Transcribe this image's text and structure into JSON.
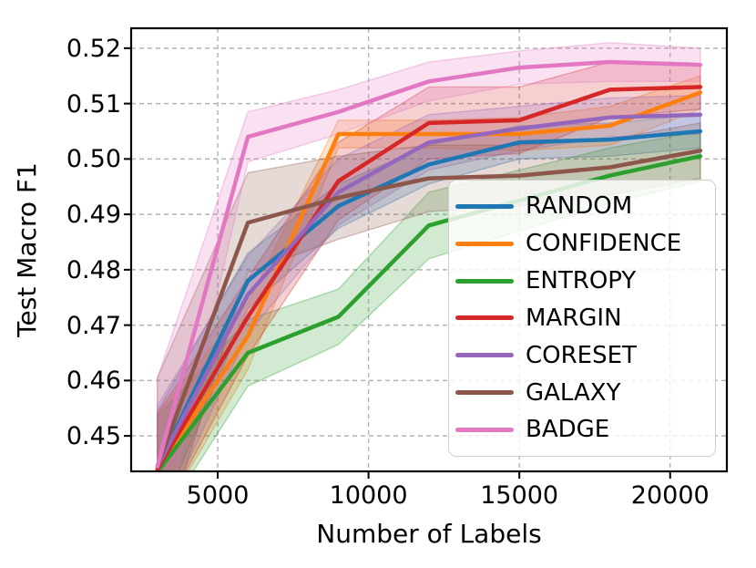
{
  "chart_data": {
    "type": "line",
    "title": "",
    "xlabel": "Number of Labels",
    "ylabel": "Test Macro F1",
    "x": [
      3000,
      6000,
      9000,
      12000,
      15000,
      18000,
      21000
    ],
    "xlim": [
      2130,
      21880
    ],
    "ylim": [
      0.4436,
      0.5236
    ],
    "x_tick_values": [
      5000,
      10000,
      15000,
      20000
    ],
    "x_tick_labels": [
      "5000",
      "10000",
      "15000",
      "20000"
    ],
    "y_tick_values": [
      0.45,
      0.46,
      0.47,
      0.48,
      0.49,
      0.5,
      0.51,
      0.52
    ],
    "y_tick_labels": [
      "0.45",
      "0.46",
      "0.47",
      "0.48",
      "0.49",
      "0.50",
      "0.51",
      "0.52"
    ],
    "grid": true,
    "grid_style": "dashed",
    "legend_position": "lower right",
    "series": [
      {
        "name": "RANDOM",
        "color": "#1f77b4",
        "values": [
          0.4445,
          0.478,
          0.4915,
          0.499,
          0.503,
          0.5035,
          0.505
        ],
        "band_halfwidth": [
          0.01,
          0.005,
          0.004,
          0.0035,
          0.003,
          0.003,
          0.003
        ]
      },
      {
        "name": "CONFIDENCE",
        "color": "#ff7f0e",
        "values": [
          0.444,
          0.468,
          0.5045,
          0.5045,
          0.5045,
          0.506,
          0.512
        ],
        "band_halfwidth": [
          0.01,
          0.006,
          0.0025,
          0.0025,
          0.003,
          0.0035,
          0.003
        ]
      },
      {
        "name": "ENTROPY",
        "color": "#2ca02c",
        "values": [
          0.4435,
          0.465,
          0.4715,
          0.488,
          0.4925,
          0.497,
          0.5005
        ],
        "band_halfwidth": [
          0.01,
          0.006,
          0.005,
          0.006,
          0.0055,
          0.005,
          0.0045
        ]
      },
      {
        "name": "MARGIN",
        "color": "#d62728",
        "values": [
          0.444,
          0.4715,
          0.496,
          0.5065,
          0.507,
          0.5125,
          0.513
        ],
        "band_halfwidth": [
          0.01,
          0.007,
          0.007,
          0.0065,
          0.006,
          0.005,
          0.004
        ]
      },
      {
        "name": "CORESET",
        "color": "#9467bd",
        "values": [
          0.4445,
          0.4755,
          0.494,
          0.503,
          0.5055,
          0.5075,
          0.508
        ],
        "band_halfwidth": [
          0.011,
          0.007,
          0.006,
          0.005,
          0.004,
          0.0035,
          0.0035
        ]
      },
      {
        "name": "GALAXY",
        "color": "#8c564b",
        "values": [
          0.4445,
          0.4885,
          0.493,
          0.4965,
          0.497,
          0.4985,
          0.5015
        ],
        "band_halfwidth": [
          0.016,
          0.009,
          0.0075,
          0.006,
          0.0055,
          0.005,
          0.005
        ]
      },
      {
        "name": "BADGE",
        "color": "#e377c2",
        "values": [
          0.4445,
          0.504,
          0.5085,
          0.514,
          0.5165,
          0.5175,
          0.517
        ],
        "band_halfwidth": [
          0.016,
          0.0045,
          0.004,
          0.0035,
          0.003,
          0.0035,
          0.003
        ]
      }
    ]
  },
  "style_colors": {
    "grid": "#b3b3b3",
    "spine": "#000000",
    "background": "#ffffff",
    "legend_border": "#cdcdcd",
    "band_opacity": 0.22
  }
}
